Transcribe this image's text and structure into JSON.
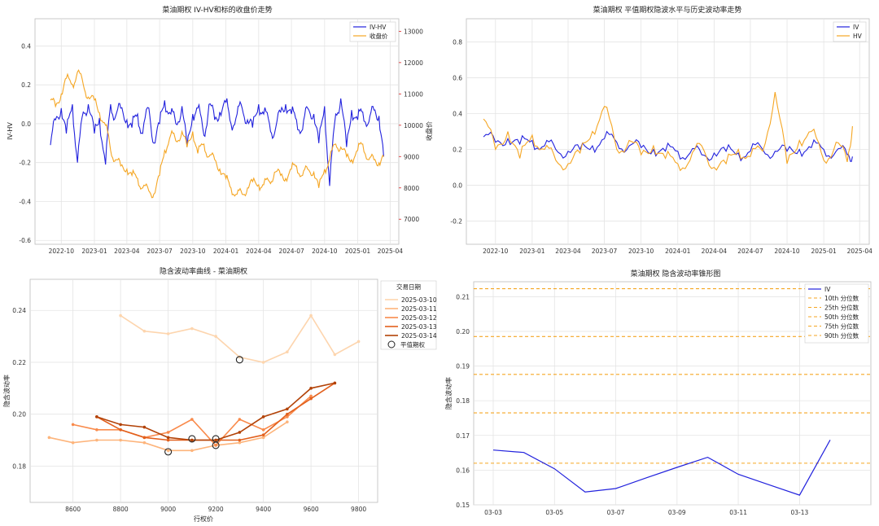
{
  "chart_data": [
    {
      "type": "line",
      "title": "菜油期权 IV-HV和标的收盘价走势",
      "xlabel": "",
      "ylabel": "IV-HV",
      "y2label": "收盘价",
      "x_ticks": [
        "2022-10",
        "2023-01",
        "2023-04",
        "2023-07",
        "2023-10",
        "2024-01",
        "2024-04",
        "2024-07",
        "2024-10",
        "2025-01",
        "2025-04"
      ],
      "ylim": [
        -0.62,
        0.54
      ],
      "y_ticks": [
        "0.4",
        "0.2",
        "0.0",
        "-0.2",
        "-0.4",
        "-0.6"
      ],
      "y2lim": [
        6200,
        13400
      ],
      "y2_ticks": [
        "13000",
        "12000",
        "11000",
        "10000",
        "9000",
        "8000",
        "7000"
      ],
      "legend": "top-right",
      "grid": true,
      "series": [
        {
          "name": "IV-HV",
          "axis": "left",
          "color": "#2222dd",
          "x": [
            "2022-09-01",
            "2022-09-15",
            "2022-10-01",
            "2022-10-15",
            "2022-11-01",
            "2022-11-15",
            "2022-12-01",
            "2022-12-15",
            "2023-01-01",
            "2023-01-15",
            "2023-02-01",
            "2023-02-15",
            "2023-03-01",
            "2023-03-15",
            "2023-04-01",
            "2023-04-15",
            "2023-05-01",
            "2023-05-15",
            "2023-06-01",
            "2023-06-15",
            "2023-07-01",
            "2023-07-15",
            "2023-08-01",
            "2023-08-15",
            "2023-09-01",
            "2023-09-15",
            "2023-10-01",
            "2023-10-15",
            "2023-11-01",
            "2023-11-15",
            "2023-12-01",
            "2023-12-15",
            "2024-01-01",
            "2024-01-15",
            "2024-02-01",
            "2024-02-15",
            "2024-03-01",
            "2024-03-15",
            "2024-04-01",
            "2024-04-15",
            "2024-05-01",
            "2024-05-15",
            "2024-06-01",
            "2024-06-15",
            "2024-07-01",
            "2024-07-15",
            "2024-08-01",
            "2024-08-15",
            "2024-09-01",
            "2024-09-15",
            "2024-10-01",
            "2024-10-15",
            "2024-11-01",
            "2024-11-15",
            "2024-12-01",
            "2024-12-15",
            "2025-01-01",
            "2025-01-15",
            "2025-02-01",
            "2025-02-15",
            "2025-03-01",
            "2025-03-14"
          ],
          "y": [
            -0.11,
            0.02,
            0.08,
            -0.05,
            0.1,
            -0.2,
            0.06,
            0.1,
            -0.05,
            0.03,
            -0.21,
            0.1,
            0.04,
            0.08,
            0.02,
            -0.02,
            0.05,
            -0.05,
            0.08,
            -0.1,
            0.0,
            0.12,
            0.05,
            0.0,
            0.09,
            -0.12,
            0.05,
            0.08,
            -0.06,
            0.1,
            0.02,
            0.06,
            0.11,
            0.0,
            0.05,
            0.08,
            0.02,
            -0.02,
            0.1,
            0.05,
            0.0,
            -0.05,
            0.06,
            0.1,
            0.05,
            0.02,
            -0.03,
            0.08,
            0.05,
            -0.1,
            0.09,
            -0.32,
            0.05,
            0.13,
            -0.12,
            0.07,
            0.02,
            0.06,
            0.01,
            0.07,
            0.04,
            -0.17
          ]
        },
        {
          "name": "收盘价",
          "axis": "right",
          "color": "#f5a623",
          "x": [
            "2022-09-01",
            "2022-09-15",
            "2022-10-01",
            "2022-10-15",
            "2022-11-01",
            "2022-11-15",
            "2022-12-01",
            "2022-12-15",
            "2023-01-01",
            "2023-01-15",
            "2023-02-01",
            "2023-02-15",
            "2023-03-01",
            "2023-03-15",
            "2023-04-01",
            "2023-04-15",
            "2023-05-01",
            "2023-05-15",
            "2023-06-01",
            "2023-06-15",
            "2023-07-01",
            "2023-07-15",
            "2023-08-01",
            "2023-08-15",
            "2023-09-01",
            "2023-09-15",
            "2023-10-01",
            "2023-10-15",
            "2023-11-01",
            "2023-11-15",
            "2023-12-01",
            "2023-12-15",
            "2024-01-01",
            "2024-01-15",
            "2024-02-01",
            "2024-02-15",
            "2024-03-01",
            "2024-03-15",
            "2024-04-01",
            "2024-04-15",
            "2024-05-01",
            "2024-05-15",
            "2024-06-01",
            "2024-06-15",
            "2024-07-01",
            "2024-07-15",
            "2024-08-01",
            "2024-08-15",
            "2024-09-01",
            "2024-09-15",
            "2024-10-01",
            "2024-10-15",
            "2024-11-01",
            "2024-11-15",
            "2024-12-01",
            "2024-12-15",
            "2025-01-01",
            "2025-01-15",
            "2025-02-01",
            "2025-02-15",
            "2025-03-01",
            "2025-03-14"
          ],
          "y": [
            10800,
            10600,
            11000,
            11500,
            11300,
            11700,
            11300,
            10900,
            10800,
            10400,
            10000,
            9200,
            8900,
            8700,
            8600,
            8400,
            8300,
            8000,
            7900,
            7800,
            8400,
            9200,
            9700,
            9500,
            9800,
            9300,
            9800,
            9100,
            9400,
            9000,
            8900,
            8600,
            8300,
            8000,
            7800,
            7800,
            8000,
            8200,
            8100,
            8100,
            8200,
            8500,
            8400,
            8300,
            8600,
            8700,
            8400,
            8600,
            8500,
            8000,
            8600,
            8900,
            9400,
            9300,
            9000,
            8900,
            9200,
            9400,
            8900,
            8900,
            8800,
            9000
          ]
        }
      ]
    },
    {
      "type": "line",
      "title": "菜油期权 平值期权隐波水平与历史波动率走势",
      "xlabel": "",
      "ylabel": "",
      "x_ticks": [
        "2022-10",
        "2023-01",
        "2023-04",
        "2023-07",
        "2023-10",
        "2024-01",
        "2024-04",
        "2024-07",
        "2024-10",
        "2025-01",
        "2025-04"
      ],
      "ylim": [
        -0.33,
        0.93
      ],
      "y_ticks": [
        "0.8",
        "0.6",
        "0.4",
        "0.2",
        "0.0",
        "-0.2"
      ],
      "legend": "top-right",
      "grid": true,
      "series": [
        {
          "name": "IV",
          "color": "#2222dd",
          "x": [
            "2022-09-01",
            "2022-10-01",
            "2022-11-01",
            "2022-12-01",
            "2023-01-01",
            "2023-02-01",
            "2023-03-01",
            "2023-04-01",
            "2023-05-01",
            "2023-06-01",
            "2023-07-01",
            "2023-08-01",
            "2023-09-01",
            "2023-10-01",
            "2023-11-01",
            "2023-12-01",
            "2024-01-01",
            "2024-02-01",
            "2024-03-01",
            "2024-04-01",
            "2024-05-01",
            "2024-06-01",
            "2024-07-01",
            "2024-08-01",
            "2024-09-01",
            "2024-10-01",
            "2024-11-01",
            "2024-12-01",
            "2025-01-01",
            "2025-02-01",
            "2025-03-01",
            "2025-03-14"
          ],
          "y": [
            0.27,
            0.24,
            0.26,
            0.23,
            0.25,
            0.22,
            0.2,
            0.19,
            0.2,
            0.22,
            0.26,
            0.24,
            0.22,
            0.21,
            0.2,
            0.19,
            0.19,
            0.18,
            0.17,
            0.18,
            0.19,
            0.18,
            0.19,
            0.2,
            0.19,
            0.19,
            0.2,
            0.21,
            0.2,
            0.19,
            0.17,
            0.16
          ]
        },
        {
          "name": "HV",
          "color": "#f5a623",
          "x": [
            "2022-09-01",
            "2022-10-01",
            "2022-11-01",
            "2022-12-01",
            "2023-01-01",
            "2023-02-01",
            "2023-03-01",
            "2023-04-01",
            "2023-05-01",
            "2023-06-01",
            "2023-07-01",
            "2023-08-01",
            "2023-09-01",
            "2023-10-01",
            "2023-11-01",
            "2023-12-01",
            "2024-01-01",
            "2024-02-01",
            "2024-03-01",
            "2024-04-01",
            "2024-05-01",
            "2024-06-01",
            "2024-07-01",
            "2024-08-01",
            "2024-09-01",
            "2024-10-01",
            "2024-11-01",
            "2024-12-01",
            "2025-01-01",
            "2025-02-01",
            "2025-03-01",
            "2025-03-14"
          ],
          "y": [
            0.37,
            0.2,
            0.3,
            0.15,
            0.28,
            0.2,
            0.14,
            0.12,
            0.18,
            0.3,
            0.44,
            0.2,
            0.25,
            0.17,
            0.22,
            0.15,
            0.12,
            0.14,
            0.22,
            0.1,
            0.12,
            0.2,
            0.16,
            0.19,
            0.52,
            0.12,
            0.25,
            0.3,
            0.14,
            0.24,
            0.13,
            0.33
          ]
        }
      ]
    },
    {
      "type": "line",
      "title": "隐含波动率曲线 - 菜油期权",
      "xlabel": "行权价",
      "ylabel": "隐含波动率",
      "xlim": [
        8420,
        9880
      ],
      "x_ticks": [
        "8600",
        "8800",
        "9000",
        "9200",
        "9400",
        "9600",
        "9800"
      ],
      "ylim": [
        0.166,
        0.252
      ],
      "y_ticks": [
        "0.24",
        "0.22",
        "0.20",
        "0.18"
      ],
      "legend_title": "交易日期",
      "legend": "outside top-right",
      "grid": true,
      "series": [
        {
          "name": "2025-03-10",
          "color": "#fdd5ae",
          "x": [
            8800,
            8900,
            9000,
            9100,
            9200,
            9300,
            9400,
            9500,
            9600,
            9700,
            9800
          ],
          "y": [
            0.238,
            0.232,
            0.231,
            0.233,
            0.23,
            0.222,
            0.22,
            0.224,
            0.238,
            0.223,
            0.228
          ]
        },
        {
          "name": "2025-03-11",
          "color": "#fdb47b",
          "x": [
            8500,
            8600,
            8700,
            8800,
            8900,
            9000,
            9100,
            9200,
            9300,
            9400,
            9500
          ],
          "y": [
            0.191,
            0.189,
            0.19,
            0.19,
            0.189,
            0.186,
            0.186,
            0.188,
            0.189,
            0.191,
            0.197
          ]
        },
        {
          "name": "2025-03-12",
          "color": "#f98a4b",
          "x": [
            8600,
            8700,
            8800,
            8900,
            9000,
            9100,
            9200,
            9300,
            9400,
            9500,
            9600
          ],
          "y": [
            0.196,
            0.194,
            0.194,
            0.191,
            0.193,
            0.198,
            0.188,
            0.198,
            0.194,
            0.199,
            0.207
          ]
        },
        {
          "name": "2025-03-13",
          "color": "#e2601d",
          "x": [
            8700,
            8800,
            8900,
            9000,
            9100,
            9200,
            9300,
            9400,
            9500,
            9600,
            9700
          ],
          "y": [
            0.199,
            0.194,
            0.191,
            0.19,
            0.19,
            0.19,
            0.19,
            0.192,
            0.2,
            0.206,
            0.212
          ]
        },
        {
          "name": "2025-03-14",
          "color": "#b24207",
          "x": [
            8700,
            8800,
            8900,
            9000,
            9100,
            9200,
            9300,
            9400,
            9500,
            9600,
            9700
          ],
          "y": [
            0.199,
            0.196,
            0.195,
            0.191,
            0.19,
            0.19,
            0.193,
            0.199,
            0.202,
            0.21,
            0.212
          ]
        }
      ],
      "atm_label": "平值期权",
      "atm_points": [
        {
          "x": 9300,
          "y": 0.221
        },
        {
          "x": 9000,
          "y": 0.1855
        },
        {
          "x": 9100,
          "y": 0.1905
        },
        {
          "x": 9200,
          "y": 0.188
        },
        {
          "x": 9200,
          "y": 0.1905
        }
      ]
    },
    {
      "type": "line",
      "title": "菜油期权 隐含波动率锥形图",
      "xlabel": "",
      "ylabel": "隐含波动率",
      "x_ticks": [
        "03-03",
        "03-05",
        "03-07",
        "03-09",
        "03-11",
        "03-13"
      ],
      "ylim": [
        0.15,
        0.2143
      ],
      "y_ticks": [
        "0.21",
        "0.20",
        "0.19",
        "0.18",
        "0.17",
        "0.16",
        "0.15"
      ],
      "legend": "top-right",
      "grid": true,
      "series": [
        {
          "name": "IV",
          "color": "#2222dd",
          "x": [
            "03-03",
            "03-04",
            "03-05",
            "03-06",
            "03-07",
            "03-08",
            "03-09",
            "03-10",
            "03-11",
            "03-12",
            "03-13",
            "03-14"
          ],
          "y": [
            0.1658,
            0.1651,
            0.1604,
            0.1537,
            0.1547,
            0.1578,
            0.1608,
            0.1637,
            0.1588,
            0.1558,
            0.1528,
            0.1687
          ]
        }
      ],
      "percentiles": [
        {
          "name": "10th 分位数",
          "value": 0.162
        },
        {
          "name": "25th 分位数",
          "value": 0.1765
        },
        {
          "name": "50th 分位数",
          "value": 0.1876
        },
        {
          "name": "75th 分位数",
          "value": 0.1985
        },
        {
          "name": "90th 分位数",
          "value": 0.2123
        }
      ],
      "percentile_color": "#f5a623"
    }
  ]
}
